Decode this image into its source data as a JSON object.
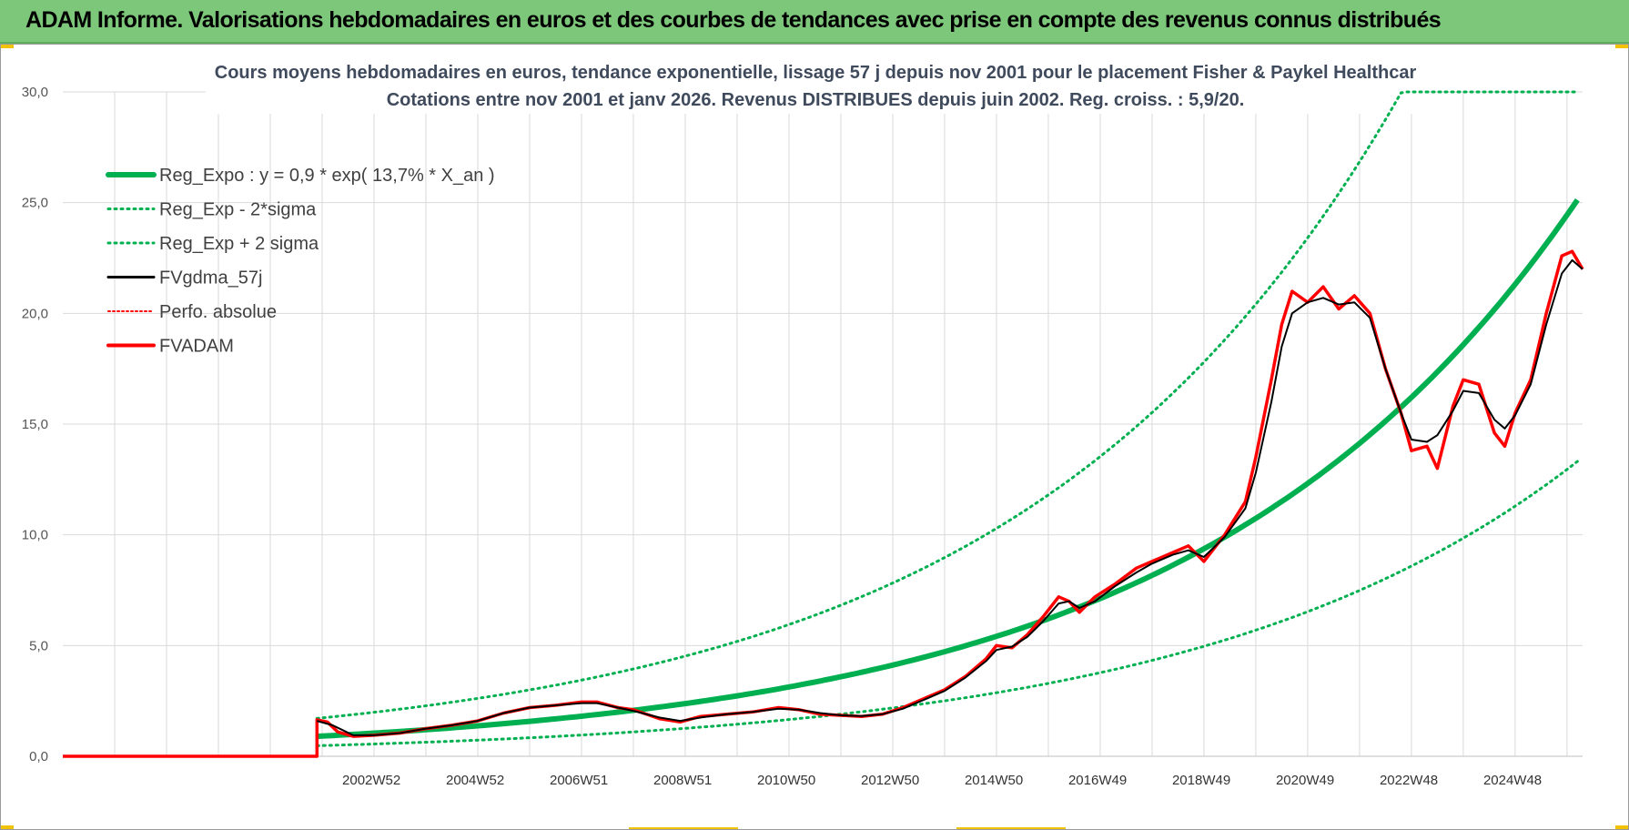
{
  "banner": {
    "title": "ADAM Informe. Valorisations hebdomadaires en euros et des courbes de tendances avec prise en compte des revenus connus distribués"
  },
  "chart_data": {
    "type": "line",
    "title_line1": "Cours moyens hebdomadaires en euros, tendance exponentielle, lissage 57 j depuis nov 2001  pour le placement Fisher & Paykel Healthcar",
    "title_line2": "Cotations entre nov 2001 et janv 2026. Revenus DISTRIBUES depuis juin 2002. Reg.  croiss. : 5,9/20.",
    "ylim": [
      0,
      30
    ],
    "yticks": [
      "0,0",
      "5,0",
      "10,0",
      "15,0",
      "20,0",
      "25,0",
      "30,0"
    ],
    "xlim": [
      1997.0,
      2026.3
    ],
    "xtick_labels": [
      "2002W52",
      "2004W52",
      "2006W51",
      "2008W51",
      "2010W50",
      "2012W50",
      "2014W50",
      "2016W49",
      "2018W49",
      "2020W49",
      "2022W48",
      "2024W48"
    ],
    "xtick_years": [
      2002.95,
      2004.95,
      2006.95,
      2008.95,
      2010.95,
      2012.95,
      2014.95,
      2016.95,
      2018.95,
      2020.95,
      2022.95,
      2024.95
    ],
    "legend_position": "top-left",
    "colors": {
      "green": "#00b050",
      "red": "#ff0000",
      "black": "#000000",
      "grid": "#d9d9d9"
    },
    "legend": [
      "Reg_Expo : y = 0,9 * exp( 13,7% *  X_an )",
      "Reg_Exp - 2*sigma",
      "Reg_Exp + 2 sigma",
      "FVgdma_57j",
      "Perfo. absolue",
      "FVADAM"
    ],
    "regression": {
      "start": 2001.9,
      "end": 2026.2,
      "a": 0.9,
      "rate": 0.137,
      "year0": 2001.9,
      "lower_factor": 0.53,
      "upper_factor": 1.9
    },
    "series": [
      {
        "name": "FVADAM",
        "pre_zero_from": 1997.0,
        "points": [
          [
            2001.9,
            1.65
          ],
          [
            2002.1,
            1.55
          ],
          [
            2002.3,
            1.1
          ],
          [
            2002.6,
            0.9
          ],
          [
            2003.0,
            0.95
          ],
          [
            2003.5,
            1.05
          ],
          [
            2004.0,
            1.25
          ],
          [
            2004.5,
            1.4
          ],
          [
            2005.0,
            1.6
          ],
          [
            2005.5,
            1.95
          ],
          [
            2006.0,
            2.2
          ],
          [
            2006.5,
            2.3
          ],
          [
            2007.0,
            2.45
          ],
          [
            2007.3,
            2.45
          ],
          [
            2007.7,
            2.2
          ],
          [
            2008.0,
            2.1
          ],
          [
            2008.5,
            1.7
          ],
          [
            2008.9,
            1.55
          ],
          [
            2009.3,
            1.8
          ],
          [
            2009.8,
            1.9
          ],
          [
            2010.3,
            2.0
          ],
          [
            2010.8,
            2.2
          ],
          [
            2011.2,
            2.1
          ],
          [
            2011.6,
            1.9
          ],
          [
            2012.0,
            1.85
          ],
          [
            2012.4,
            1.8
          ],
          [
            2012.8,
            1.9
          ],
          [
            2013.2,
            2.2
          ],
          [
            2013.6,
            2.6
          ],
          [
            2014.0,
            3.0
          ],
          [
            2014.4,
            3.6
          ],
          [
            2014.8,
            4.4
          ],
          [
            2015.0,
            5.0
          ],
          [
            2015.3,
            4.9
          ],
          [
            2015.6,
            5.5
          ],
          [
            2015.9,
            6.3
          ],
          [
            2016.2,
            7.2
          ],
          [
            2016.4,
            7.0
          ],
          [
            2016.6,
            6.5
          ],
          [
            2016.9,
            7.2
          ],
          [
            2017.3,
            7.8
          ],
          [
            2017.7,
            8.5
          ],
          [
            2018.0,
            8.8
          ],
          [
            2018.4,
            9.2
          ],
          [
            2018.7,
            9.5
          ],
          [
            2019.0,
            8.8
          ],
          [
            2019.4,
            10.0
          ],
          [
            2019.8,
            11.5
          ],
          [
            2020.0,
            13.5
          ],
          [
            2020.3,
            17.0
          ],
          [
            2020.5,
            19.5
          ],
          [
            2020.7,
            21.0
          ],
          [
            2021.0,
            20.5
          ],
          [
            2021.3,
            21.2
          ],
          [
            2021.6,
            20.2
          ],
          [
            2021.9,
            20.8
          ],
          [
            2022.2,
            20.0
          ],
          [
            2022.5,
            17.5
          ],
          [
            2022.8,
            15.5
          ],
          [
            2023.0,
            13.8
          ],
          [
            2023.3,
            14.0
          ],
          [
            2023.5,
            13.0
          ],
          [
            2023.8,
            15.8
          ],
          [
            2024.0,
            17.0
          ],
          [
            2024.3,
            16.8
          ],
          [
            2024.6,
            14.6
          ],
          [
            2024.8,
            14.0
          ],
          [
            2025.0,
            15.5
          ],
          [
            2025.3,
            17.0
          ],
          [
            2025.6,
            20.0
          ],
          [
            2025.9,
            22.6
          ],
          [
            2026.1,
            22.8
          ],
          [
            2026.3,
            22.0
          ]
        ]
      },
      {
        "name": "FVgdma_57j",
        "points": [
          [
            2001.9,
            1.6
          ],
          [
            2002.2,
            1.4
          ],
          [
            2002.6,
            0.95
          ],
          [
            2003.0,
            0.95
          ],
          [
            2003.5,
            1.05
          ],
          [
            2004.0,
            1.25
          ],
          [
            2004.5,
            1.4
          ],
          [
            2005.0,
            1.6
          ],
          [
            2005.5,
            1.95
          ],
          [
            2006.0,
            2.2
          ],
          [
            2006.5,
            2.3
          ],
          [
            2007.0,
            2.4
          ],
          [
            2007.3,
            2.4
          ],
          [
            2007.7,
            2.2
          ],
          [
            2008.0,
            2.05
          ],
          [
            2008.5,
            1.75
          ],
          [
            2008.9,
            1.6
          ],
          [
            2009.3,
            1.75
          ],
          [
            2009.8,
            1.9
          ],
          [
            2010.3,
            2.0
          ],
          [
            2010.8,
            2.15
          ],
          [
            2011.2,
            2.1
          ],
          [
            2011.6,
            1.95
          ],
          [
            2012.0,
            1.85
          ],
          [
            2012.4,
            1.82
          ],
          [
            2012.8,
            1.9
          ],
          [
            2013.2,
            2.15
          ],
          [
            2013.6,
            2.55
          ],
          [
            2014.0,
            2.95
          ],
          [
            2014.4,
            3.55
          ],
          [
            2014.8,
            4.3
          ],
          [
            2015.0,
            4.8
          ],
          [
            2015.3,
            4.95
          ],
          [
            2015.6,
            5.4
          ],
          [
            2015.9,
            6.1
          ],
          [
            2016.2,
            6.9
          ],
          [
            2016.4,
            7.0
          ],
          [
            2016.6,
            6.7
          ],
          [
            2016.9,
            7.0
          ],
          [
            2017.3,
            7.7
          ],
          [
            2017.7,
            8.3
          ],
          [
            2018.0,
            8.7
          ],
          [
            2018.4,
            9.1
          ],
          [
            2018.7,
            9.3
          ],
          [
            2019.0,
            9.0
          ],
          [
            2019.4,
            9.9
          ],
          [
            2019.8,
            11.2
          ],
          [
            2020.0,
            12.8
          ],
          [
            2020.3,
            16.0
          ],
          [
            2020.5,
            18.5
          ],
          [
            2020.7,
            20.0
          ],
          [
            2021.0,
            20.5
          ],
          [
            2021.3,
            20.7
          ],
          [
            2021.6,
            20.4
          ],
          [
            2021.9,
            20.5
          ],
          [
            2022.2,
            19.8
          ],
          [
            2022.5,
            17.5
          ],
          [
            2022.8,
            15.5
          ],
          [
            2023.0,
            14.3
          ],
          [
            2023.3,
            14.2
          ],
          [
            2023.5,
            14.5
          ],
          [
            2023.8,
            15.6
          ],
          [
            2024.0,
            16.5
          ],
          [
            2024.3,
            16.4
          ],
          [
            2024.6,
            15.2
          ],
          [
            2024.8,
            14.8
          ],
          [
            2025.0,
            15.4
          ],
          [
            2025.3,
            16.8
          ],
          [
            2025.6,
            19.5
          ],
          [
            2025.9,
            21.8
          ],
          [
            2026.1,
            22.4
          ],
          [
            2026.3,
            22.0
          ]
        ]
      }
    ]
  }
}
